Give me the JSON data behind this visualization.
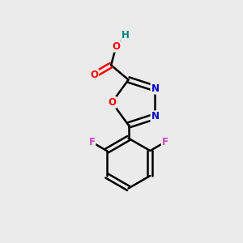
{
  "background_color": "#ebebeb",
  "bond_color": "#000000",
  "atom_colors": {
    "O": "#ff0000",
    "N": "#0000cc",
    "F": "#cc44cc",
    "H": "#008080",
    "C": "#000000"
  },
  "figsize": [
    3.0,
    3.0
  ],
  "dpi": 100
}
